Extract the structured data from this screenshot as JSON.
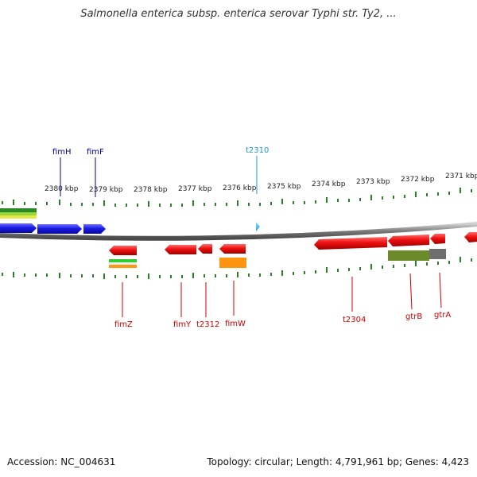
{
  "title": "Salmonella enterica subsp. enterica serovar Typhi str. Ty2, ...",
  "footer": {
    "accession": "Accession: NC_004631",
    "summary": "Topology: circular; Length: 4,791,961 bp; Genes: 4,423"
  },
  "colors": {
    "forward_gene": "#1515e8",
    "reverse_gene": "#e81010",
    "highlight_gene": "#33bbee",
    "backbone": "#8a8a8a",
    "tick": "#2e7d2e",
    "forward_label": "#000099",
    "reverse_label": "#cc0000",
    "highlight_label": "#2299cc"
  },
  "scale_ticks": [
    "2380 kbp",
    "2379 kbp",
    "2378 kbp",
    "2377 kbp",
    "2376 kbp",
    "2375 kbp",
    "2374 kbp",
    "2373 kbp",
    "2372 kbp",
    "2371 kbp"
  ],
  "forward_labels": [
    "fimH",
    "fimF"
  ],
  "highlight_label": "t2310",
  "reverse_labels": [
    "fimZ",
    "fimY",
    "t2312",
    "fimW",
    "t2304",
    "gtrB",
    "gtrA"
  ]
}
